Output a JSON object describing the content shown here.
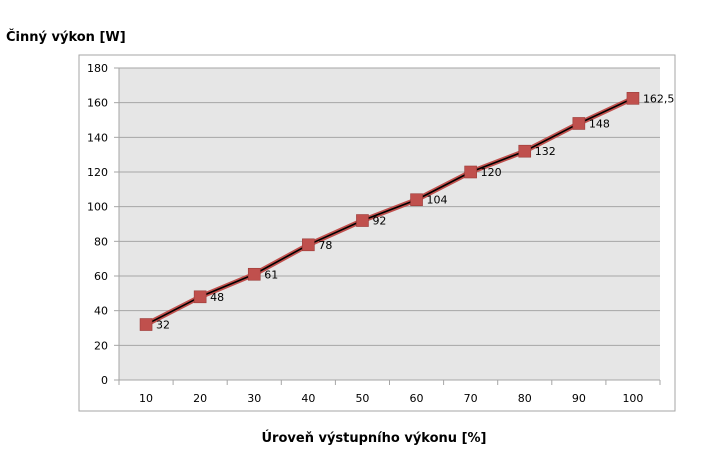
{
  "chart_data": {
    "type": "line",
    "title": "",
    "xlabel": "Úroveň výstupního výkonu  [%]",
    "ylabel": "Činný výkon [W]",
    "x": [
      10,
      20,
      30,
      40,
      50,
      60,
      70,
      80,
      90,
      100
    ],
    "x_tick_labels": [
      "10",
      "20",
      "30",
      "40",
      "50",
      "60",
      "70",
      "80",
      "90",
      "100"
    ],
    "ylim": [
      0,
      180
    ],
    "y_ticks": [
      0,
      20,
      40,
      60,
      80,
      100,
      120,
      140,
      160,
      180
    ],
    "y_tick_labels": [
      "0",
      "20",
      "40",
      "60",
      "80",
      "100",
      "120",
      "140",
      "160",
      "180"
    ],
    "grid": true,
    "legend": "none",
    "series": [
      {
        "values": [
          32,
          48,
          61,
          78,
          92,
          104,
          120,
          132,
          148,
          162.5
        ],
        "data_labels": [
          "32",
          "48",
          "61",
          "78",
          "92",
          "104",
          "120",
          "132",
          "148",
          "162,5"
        ],
        "marker": "square",
        "marker_color": "#c0504d",
        "line_color": "#000000"
      }
    ],
    "colors": {
      "plot_background": "#e6e6e6",
      "gridline": "#a6a6a6",
      "frame": "#a6a6a6"
    }
  }
}
